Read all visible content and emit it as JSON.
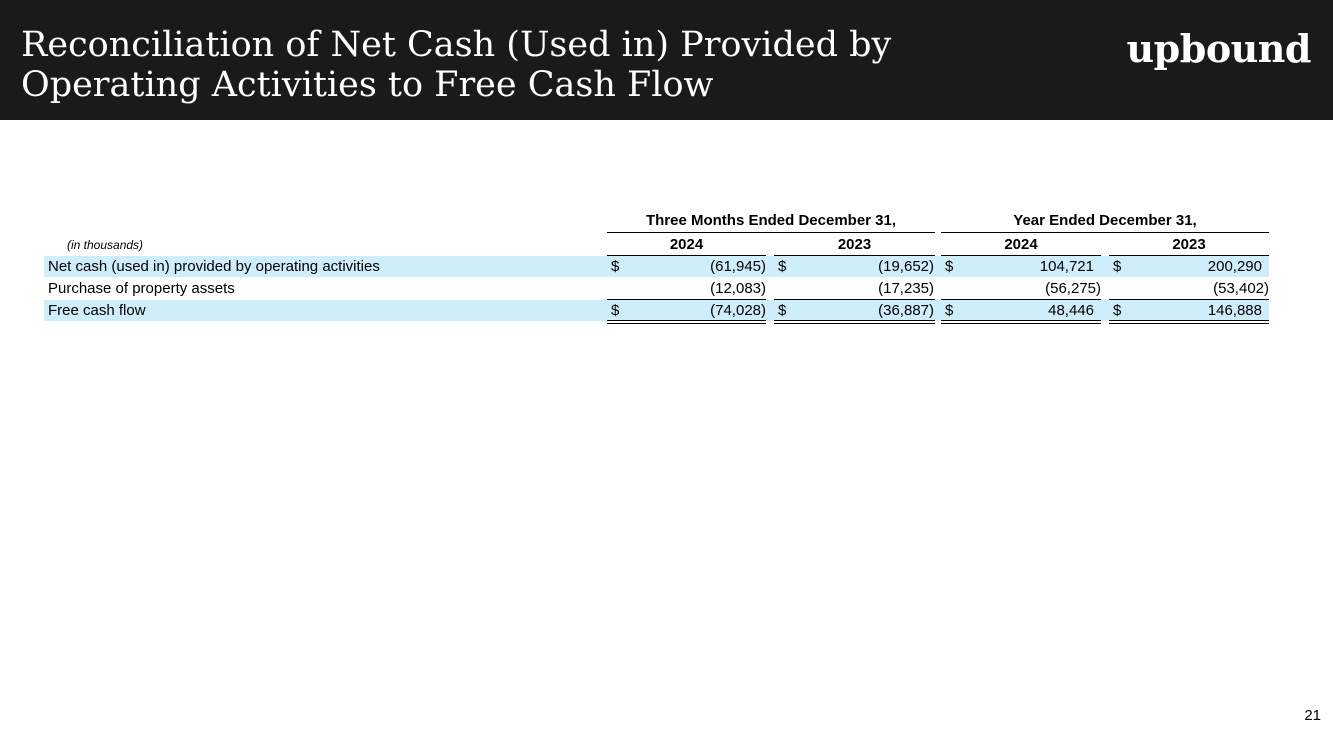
{
  "header": {
    "title": "Reconciliation of Net Cash (Used in) Provided by Operating Activities to Free Cash Flow",
    "logo": "upbound"
  },
  "table": {
    "units_note": "(in thousands)",
    "groups": [
      "Three Months Ended December 31,",
      "Year Ended December 31,"
    ],
    "years": [
      "2024",
      "2023",
      "2024",
      "2023"
    ],
    "currency_symbol": "$",
    "rows": [
      {
        "label": "Net cash (used in) provided by operating activities",
        "values": [
          "(61,945)",
          "(19,652)",
          "104,721",
          "200,290"
        ],
        "shaded": true,
        "currency": true
      },
      {
        "label": "Purchase of property assets",
        "values": [
          "(12,083)",
          "(17,235)",
          "(56,275)",
          "(53,402)"
        ],
        "shaded": false,
        "currency": false
      },
      {
        "label": "Free cash flow",
        "values": [
          "(74,028)",
          "(36,887)",
          "48,446",
          "146,888"
        ],
        "shaded": true,
        "currency": true
      }
    ]
  },
  "page_number": "21"
}
